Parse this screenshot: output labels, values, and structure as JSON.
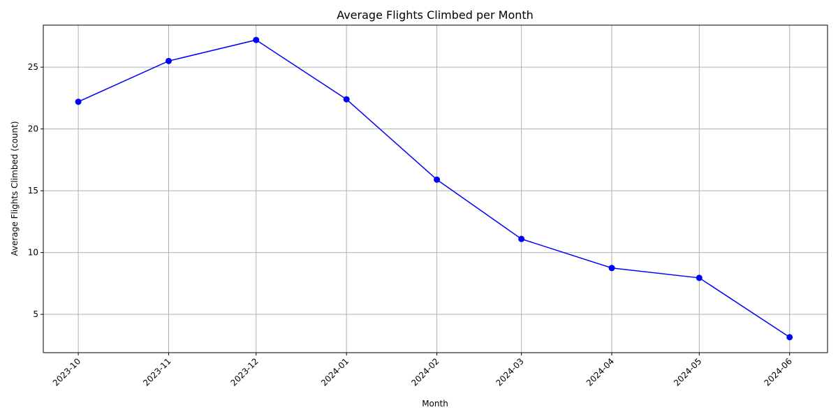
{
  "chart_data": {
    "type": "line",
    "title": "Average Flights Climbed per Month",
    "xlabel": "Month",
    "ylabel": "Average Flights Climbed (count)",
    "categories": [
      "2023-10",
      "2023-11",
      "2023-12",
      "2024-01",
      "2024-02",
      "2024-03",
      "2024-04",
      "2024-05",
      "2024-06"
    ],
    "x_dates": [
      "2023-10-01",
      "2023-11-01",
      "2023-12-01",
      "2024-01-01",
      "2024-02-01",
      "2024-03-01",
      "2024-04-01",
      "2024-05-01",
      "2024-06-01"
    ],
    "series": [
      {
        "values": [
          22.2,
          25.5,
          27.2,
          22.4,
          15.9,
          11.1,
          8.75,
          7.95,
          3.15
        ],
        "color": "#0000ff",
        "marker": "circle"
      }
    ],
    "yticks": [
      5,
      10,
      15,
      20,
      25
    ],
    "ylim": [
      1.9,
      28.4
    ],
    "xlim": [
      "2023-09-19",
      "2024-06-14"
    ],
    "grid": true,
    "legend": false
  }
}
